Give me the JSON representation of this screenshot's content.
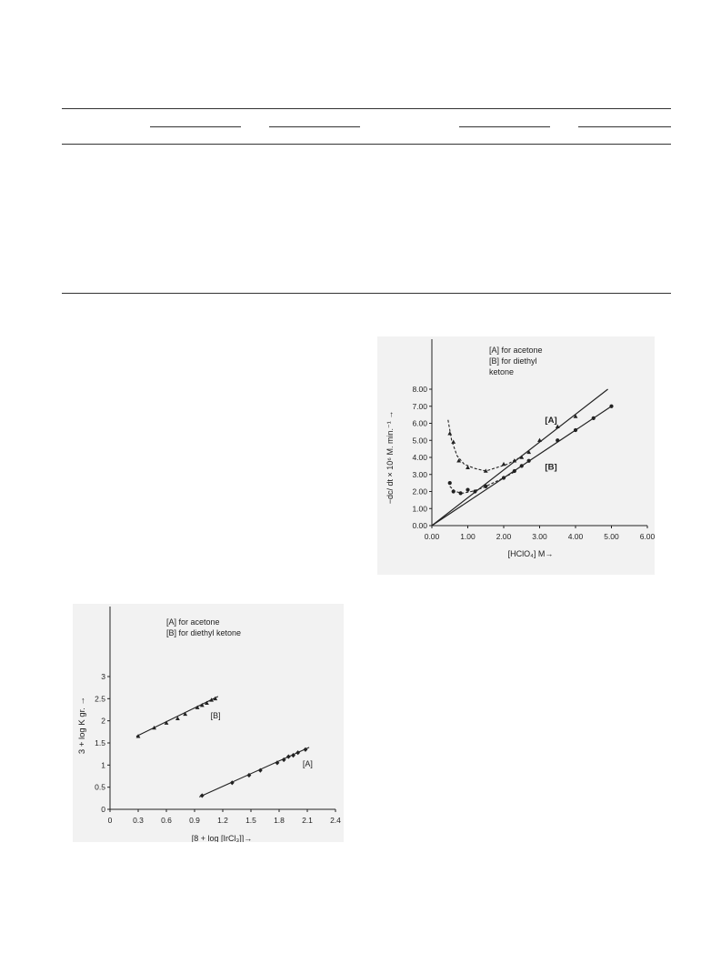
{
  "table": {
    "column_groups": 4,
    "rows": []
  },
  "figure_1": {
    "chart_data": {
      "type": "line",
      "legend": [
        "[A] for acetone",
        "[B] for diethyl",
        "ketone"
      ],
      "xlabel": "[HClO₄] M→",
      "ylabel": "−dc/ dt × 10⁶ M. min.⁻¹ →",
      "xticks": [
        "0.00",
        "1.00",
        "2.00",
        "3.00",
        "4.00",
        "5.00",
        "6.00"
      ],
      "yticks": [
        "0.00",
        "1.00",
        "2.00",
        "3.00",
        "4.00",
        "5.00",
        "6.00",
        "7.00",
        "8.00"
      ],
      "xlim": [
        0,
        6
      ],
      "ylim": [
        0,
        8
      ],
      "series_labels": [
        "[A]",
        "[B]"
      ],
      "series": [
        {
          "name": "[A]",
          "line": [
            [
              0,
              0
            ],
            [
              4.9,
              8.0
            ]
          ],
          "points": [
            [
              0.5,
              5.4
            ],
            [
              0.6,
              4.9
            ],
            [
              0.75,
              3.8
            ],
            [
              1.0,
              3.4
            ],
            [
              1.5,
              3.2
            ],
            [
              2.0,
              3.6
            ],
            [
              2.3,
              3.8
            ],
            [
              2.5,
              4.0
            ],
            [
              2.7,
              4.3
            ],
            [
              3.0,
              5.0
            ],
            [
              3.5,
              5.8
            ],
            [
              4.0,
              6.4
            ]
          ],
          "curve": [
            [
              0.45,
              6.2
            ],
            [
              0.55,
              5.0
            ],
            [
              0.7,
              4.1
            ],
            [
              0.9,
              3.6
            ],
            [
              1.2,
              3.35
            ],
            [
              1.5,
              3.2
            ],
            [
              1.8,
              3.4
            ],
            [
              2.1,
              3.6
            ],
            [
              2.4,
              3.95
            ]
          ]
        },
        {
          "name": "[B]",
          "line": [
            [
              0,
              0
            ],
            [
              5.0,
              7.0
            ]
          ],
          "points": [
            [
              0.5,
              2.5
            ],
            [
              0.6,
              2.0
            ],
            [
              0.8,
              1.9
            ],
            [
              1.0,
              2.1
            ],
            [
              1.2,
              2.0
            ],
            [
              1.5,
              2.3
            ],
            [
              2.0,
              2.8
            ],
            [
              2.3,
              3.2
            ],
            [
              2.5,
              3.5
            ],
            [
              2.7,
              3.8
            ],
            [
              3.5,
              5.0
            ],
            [
              4.0,
              5.6
            ],
            [
              4.5,
              6.3
            ],
            [
              5.0,
              7.0
            ]
          ],
          "curve": [
            [
              0.5,
              2.3
            ],
            [
              0.65,
              2.0
            ],
            [
              0.85,
              1.9
            ],
            [
              1.1,
              2.0
            ],
            [
              1.4,
              2.2
            ],
            [
              1.7,
              2.5
            ],
            [
              2.0,
              2.8
            ],
            [
              2.3,
              3.15
            ]
          ]
        }
      ]
    }
  },
  "figure_2": {
    "chart_data": {
      "type": "scatter",
      "legend": [
        "[A] for acetone",
        "[B] for diethyl ketone"
      ],
      "xlabel": "[8 + log [IrCl₃]]→",
      "ylabel": "3 + log K gr. →",
      "xticks": [
        "0",
        "0.3",
        "0.6",
        "0.9",
        "1.2",
        "1.5",
        "1.8",
        "2.1",
        "2.4"
      ],
      "yticks": [
        "0",
        "0.5",
        "1",
        "1.5",
        "2",
        "2.5",
        "3"
      ],
      "xlim": [
        0,
        2.4
      ],
      "ylim": [
        0,
        3
      ],
      "series_labels": [
        "[B]",
        "[A]"
      ],
      "series": [
        {
          "name": "[B]",
          "line": [
            [
              0.28,
              1.65
            ],
            [
              1.15,
              2.55
            ]
          ],
          "points": [
            [
              0.3,
              1.65
            ],
            [
              0.47,
              1.84
            ],
            [
              0.6,
              1.95
            ],
            [
              0.72,
              2.05
            ],
            [
              0.8,
              2.15
            ],
            [
              0.93,
              2.3
            ],
            [
              0.98,
              2.35
            ],
            [
              1.03,
              2.4
            ],
            [
              1.08,
              2.47
            ],
            [
              1.12,
              2.5
            ]
          ]
        },
        {
          "name": "[A]",
          "line": [
            [
              0.95,
              0.28
            ],
            [
              2.12,
              1.4
            ]
          ],
          "points": [
            [
              0.98,
              0.31
            ],
            [
              1.3,
              0.6
            ],
            [
              1.48,
              0.77
            ],
            [
              1.6,
              0.88
            ],
            [
              1.78,
              1.05
            ],
            [
              1.85,
              1.12
            ],
            [
              1.9,
              1.19
            ],
            [
              1.95,
              1.22
            ],
            [
              2.0,
              1.28
            ],
            [
              2.08,
              1.35
            ]
          ]
        }
      ]
    }
  }
}
